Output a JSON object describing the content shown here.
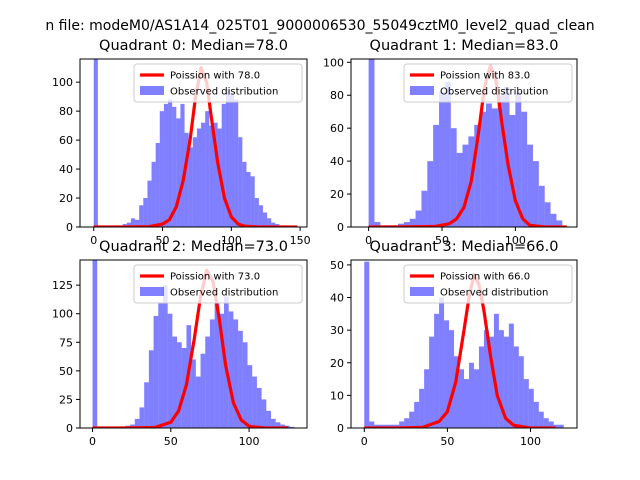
{
  "figure": {
    "suptitle": "n file: modeM0/AS1A14_025T01_9000006530_55049cztM0_level2_quad_clean"
  },
  "chart_data": [
    {
      "type": "bar",
      "title": "Quadrant 0: Median=78.0",
      "xlim": [
        -10,
        155
      ],
      "ylim": [
        0,
        116
      ],
      "xticks": [
        0,
        50,
        100,
        150
      ],
      "yticks": [
        0,
        20,
        40,
        60,
        80,
        100
      ],
      "bin_width": 3,
      "observed": {
        "name": "Observed distribution",
        "color": "#0000ff",
        "opacity": 0.5,
        "x": [
          0,
          3,
          6,
          9,
          12,
          15,
          18,
          21,
          24,
          27,
          30,
          33,
          36,
          39,
          42,
          45,
          48,
          51,
          54,
          57,
          60,
          63,
          66,
          69,
          72,
          75,
          78,
          81,
          84,
          87,
          90,
          93,
          96,
          99,
          102,
          105,
          108,
          111,
          114,
          117,
          120,
          123,
          126,
          129,
          132,
          135
        ],
        "values": [
          116,
          1,
          1,
          1,
          1,
          1,
          1,
          2,
          3,
          6,
          5,
          15,
          20,
          32,
          45,
          58,
          80,
          85,
          88,
          83,
          75,
          85,
          65,
          55,
          62,
          68,
          72,
          80,
          70,
          72,
          68,
          85,
          95,
          92,
          88,
          62,
          45,
          38,
          35,
          20,
          15,
          10,
          6,
          3,
          2,
          1
        ]
      },
      "poisson": {
        "name": "Poission with 78.0",
        "color": "#ff0000",
        "x": [
          0,
          20,
          40,
          50,
          55,
          60,
          65,
          70,
          74,
          78,
          82,
          86,
          90,
          95,
          100,
          105,
          110,
          120,
          135,
          148
        ],
        "values": [
          0,
          0,
          0.2,
          2,
          5,
          14,
          32,
          60,
          90,
          110,
          100,
          72,
          45,
          20,
          7,
          2,
          0.5,
          0,
          0,
          0
        ]
      },
      "legend_position": "upper right"
    },
    {
      "type": "bar",
      "title": "Quadrant 1: Median=83.0",
      "xlim": [
        -12,
        142
      ],
      "ylim": [
        0,
        102
      ],
      "xticks": [
        0,
        50,
        100
      ],
      "yticks": [
        0,
        20,
        40,
        60,
        80,
        100
      ],
      "bin_width": 4,
      "observed": {
        "name": "Observed distribution",
        "color": "#0000ff",
        "opacity": 0.5,
        "x": [
          0,
          4,
          8,
          12,
          16,
          20,
          24,
          28,
          32,
          36,
          40,
          44,
          48,
          52,
          56,
          60,
          64,
          68,
          72,
          76,
          80,
          84,
          88,
          92,
          96,
          100,
          104,
          108,
          112,
          116,
          120,
          124,
          128
        ],
        "values": [
          102,
          3,
          1,
          1,
          1,
          2,
          3,
          5,
          10,
          22,
          40,
          62,
          82,
          88,
          60,
          45,
          50,
          55,
          62,
          70,
          75,
          72,
          80,
          85,
          68,
          82,
          70,
          50,
          40,
          25,
          15,
          8,
          4
        ]
      },
      "poisson": {
        "name": "Poission with 83.0",
        "color": "#ff0000",
        "x": [
          0,
          20,
          45,
          55,
          60,
          65,
          70,
          75,
          79,
          83,
          87,
          91,
          95,
          100,
          105,
          110,
          120,
          135
        ],
        "values": [
          0,
          0,
          0.3,
          2,
          5,
          12,
          28,
          58,
          85,
          98,
          88,
          62,
          38,
          16,
          5,
          1,
          0,
          0
        ]
      },
      "legend_position": "upper right"
    },
    {
      "type": "bar",
      "title": "Quadrant 2: Median=73.0",
      "xlim": [
        -8,
        137
      ],
      "ylim": [
        0,
        147
      ],
      "xticks": [
        0,
        50,
        100
      ],
      "yticks": [
        0,
        25,
        50,
        75,
        100,
        125
      ],
      "bin_width": 3,
      "observed": {
        "name": "Observed distribution",
        "color": "#0000ff",
        "opacity": 0.5,
        "x": [
          0,
          3,
          6,
          9,
          12,
          15,
          18,
          21,
          24,
          27,
          30,
          33,
          36,
          39,
          42,
          45,
          48,
          51,
          54,
          57,
          60,
          63,
          66,
          69,
          72,
          75,
          78,
          81,
          84,
          87,
          90,
          93,
          96,
          99,
          102,
          105,
          108,
          111,
          114,
          117,
          120,
          123,
          126
        ],
        "values": [
          147,
          1,
          1,
          1,
          1,
          1,
          1,
          2,
          3,
          8,
          18,
          40,
          68,
          98,
          110,
          125,
          100,
          80,
          75,
          70,
          90,
          60,
          45,
          65,
          80,
          95,
          110,
          100,
          115,
          102,
          95,
          85,
          75,
          55,
          45,
          35,
          25,
          15,
          8,
          5,
          3,
          2,
          1
        ]
      },
      "poisson": {
        "name": "Poission with 73.0",
        "color": "#ff0000",
        "x": [
          0,
          20,
          40,
          50,
          55,
          60,
          65,
          69,
          73,
          77,
          81,
          85,
          90,
          95,
          100,
          110,
          125
        ],
        "values": [
          0,
          0,
          0.5,
          5,
          15,
          38,
          78,
          115,
          138,
          128,
          95,
          55,
          22,
          7,
          1.5,
          0,
          0
        ]
      },
      "legend_position": "upper right"
    },
    {
      "type": "bar",
      "title": "Quadrant 3: Median=66.0",
      "xlim": [
        -8,
        128
      ],
      "ylim": [
        0,
        51.5
      ],
      "xticks": [
        0,
        50,
        100
      ],
      "yticks": [
        0,
        10,
        20,
        30,
        40,
        50
      ],
      "bin_width": 3,
      "observed": {
        "name": "Observed distribution",
        "color": "#0000ff",
        "opacity": 0.5,
        "x": [
          0,
          3,
          6,
          9,
          12,
          15,
          18,
          21,
          24,
          27,
          30,
          33,
          36,
          39,
          42,
          45,
          48,
          51,
          54,
          57,
          60,
          63,
          66,
          69,
          72,
          75,
          78,
          81,
          84,
          87,
          90,
          93,
          96,
          99,
          102,
          105,
          108,
          111,
          114,
          117
        ],
        "values": [
          51,
          2,
          1,
          1,
          1,
          1,
          1,
          2,
          3,
          5,
          8,
          12,
          18,
          28,
          35,
          40,
          33,
          30,
          22,
          18,
          15,
          20,
          18,
          25,
          30,
          28,
          35,
          30,
          28,
          32,
          25,
          22,
          15,
          12,
          8,
          5,
          3,
          2,
          1,
          1
        ]
      },
      "poisson": {
        "name": "Poission with 66.0",
        "color": "#ff0000",
        "x": [
          0,
          20,
          35,
          45,
          50,
          55,
          60,
          63,
          66,
          69,
          72,
          76,
          80,
          85,
          90,
          100,
          115
        ],
        "values": [
          0,
          0,
          0.2,
          2,
          5,
          14,
          30,
          40,
          47,
          44,
          36,
          22,
          10,
          3,
          0.8,
          0,
          0
        ]
      },
      "legend_position": "upper right"
    }
  ]
}
